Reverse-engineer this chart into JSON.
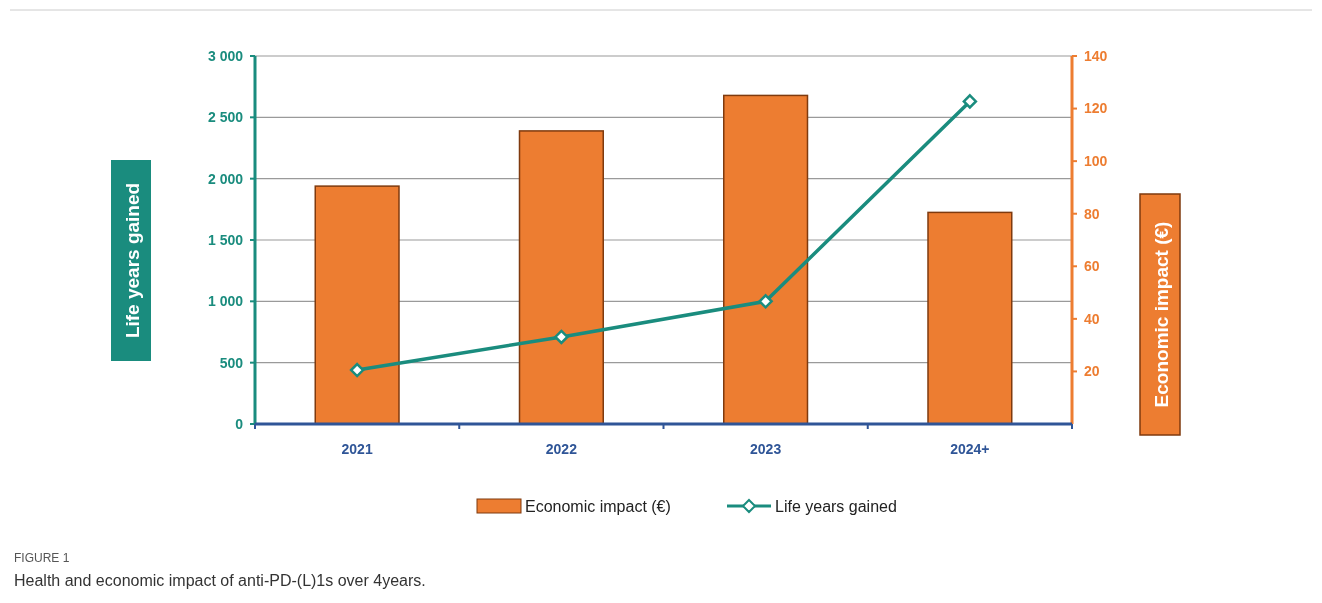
{
  "chart_data": {
    "type": "bar",
    "title": "FIGURE 1",
    "subtitle": "Health and economic impact of anti-PD-(L)1s over 4years.",
    "ylabel": "Life years gained",
    "y2label": "Economic impact (€)",
    "categories": [
      "2021",
      "2022",
      "2023",
      "2024+"
    ],
    "series": [
      {
        "name": "Economic impact (€)",
        "axis": "y2",
        "color": "#ed7d31",
        "values": [
          90.5,
          111.5,
          125,
          80.5
        ]
      },
      {
        "name": "Life years gained",
        "type": "line",
        "color": "#1a8c7e",
        "values": [
          440,
          710,
          1000,
          2630
        ]
      }
    ],
    "ylim": [
      0,
      3000
    ],
    "yticks": [
      {
        "value": 0,
        "label": "0"
      },
      {
        "value": 500,
        "label": "500"
      },
      {
        "value": 1000,
        "label": "1 000"
      },
      {
        "value": 1500,
        "label": "1 500"
      },
      {
        "value": 2000,
        "label": "2 000"
      },
      {
        "value": 2500,
        "label": "2 500"
      },
      {
        "value": 3000,
        "label": "3 000"
      }
    ],
    "y2lim": [
      0,
      140
    ],
    "y2ticks": [
      20,
      40,
      60,
      80,
      100,
      120,
      140
    ],
    "grid": "y",
    "legend": "bottom",
    "marker": "diamond",
    "line_style": "solid"
  }
}
